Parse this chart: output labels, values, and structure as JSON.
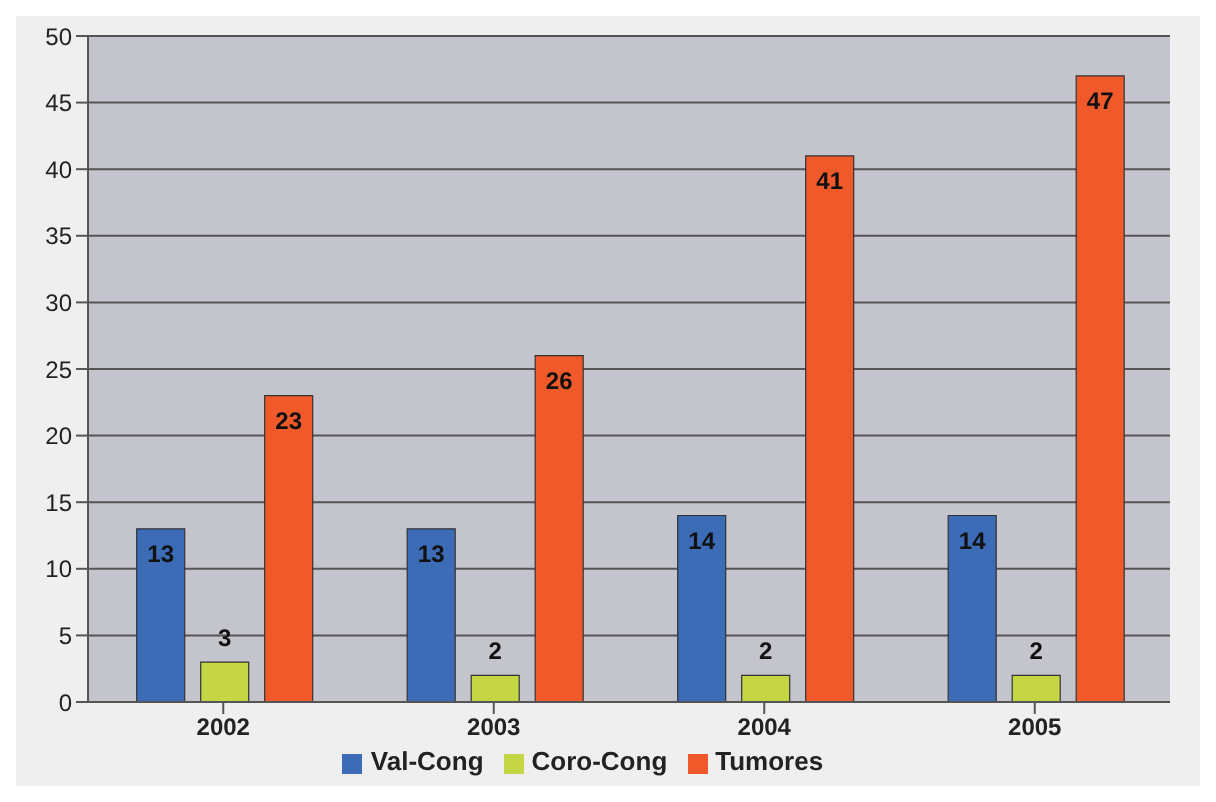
{
  "chart_data": {
    "type": "bar",
    "categories": [
      "2002",
      "2003",
      "2004",
      "2005"
    ],
    "series": [
      {
        "name": "Val-Cong",
        "color": "#3b6cb5",
        "values": [
          13,
          13,
          14,
          14
        ]
      },
      {
        "name": "Coro-Cong",
        "color": "#c5d645",
        "values": [
          3,
          2,
          2,
          2
        ]
      },
      {
        "name": "Tumores",
        "color": "#f05a2a",
        "values": [
          23,
          26,
          41,
          47
        ]
      }
    ],
    "ylim": [
      0,
      50
    ],
    "yticks": [
      0,
      5,
      10,
      15,
      20,
      25,
      30,
      35,
      40,
      45,
      50
    ],
    "grid": "y",
    "legend": "bottom",
    "data_labels": true
  }
}
